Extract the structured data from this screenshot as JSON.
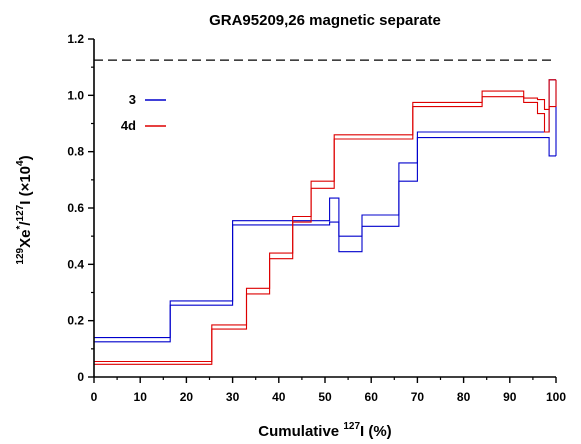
{
  "chart_data": {
    "type": "line",
    "step": true,
    "title": "GRA95209,26 magnetic separate",
    "xlabel": {
      "prefix": "Cumulative ",
      "sup": "127",
      "suffix": "I (%)"
    },
    "ylabel": {
      "sup1": "129",
      "part1": "Xe",
      "sup2": "*",
      "part2": "/",
      "sup3": "127",
      "part3": "I (×10",
      "sup4": "4",
      "part4": ")"
    },
    "xlim": [
      0,
      100
    ],
    "ylim": [
      0,
      1.2
    ],
    "xticks": [
      "0",
      "10",
      "20",
      "30",
      "40",
      "50",
      "60",
      "70",
      "80",
      "90",
      "100"
    ],
    "yticks": [
      "0",
      "0.2",
      "0.4",
      "0.6",
      "0.8",
      "1.0",
      "1.2"
    ],
    "reference_line": {
      "y": 1.125,
      "style": "dashed",
      "color": "#000000"
    },
    "legend_position": "top-left",
    "series": [
      {
        "name": "3",
        "color": "#0000cc",
        "steps": [
          {
            "x0": 0,
            "x1": 16.5,
            "lo": 0.125,
            "hi": 0.14
          },
          {
            "x0": 16.5,
            "x1": 30,
            "lo": 0.255,
            "hi": 0.27
          },
          {
            "x0": 30,
            "x1": 51,
            "lo": 0.54,
            "hi": 0.555
          },
          {
            "x0": 51,
            "x1": 53,
            "lo": 0.55,
            "hi": 0.635
          },
          {
            "x0": 53,
            "x1": 58,
            "lo": 0.445,
            "hi": 0.5
          },
          {
            "x0": 58,
            "x1": 66,
            "lo": 0.535,
            "hi": 0.575
          },
          {
            "x0": 66,
            "x1": 70,
            "lo": 0.695,
            "hi": 0.76
          },
          {
            "x0": 70,
            "x1": 98.5,
            "lo": 0.85,
            "hi": 0.87
          },
          {
            "x0": 98.5,
            "x1": 100,
            "lo": 0.785,
            "hi": 1.055
          }
        ]
      },
      {
        "name": "4d",
        "color": "#dd0000",
        "steps": [
          {
            "x0": 0,
            "x1": 25.5,
            "lo": 0.045,
            "hi": 0.055
          },
          {
            "x0": 25.5,
            "x1": 33,
            "lo": 0.17,
            "hi": 0.185
          },
          {
            "x0": 33,
            "x1": 38,
            "lo": 0.295,
            "hi": 0.315
          },
          {
            "x0": 38,
            "x1": 43,
            "lo": 0.42,
            "hi": 0.44
          },
          {
            "x0": 43,
            "x1": 47,
            "lo": 0.55,
            "hi": 0.57
          },
          {
            "x0": 47,
            "x1": 52,
            "lo": 0.67,
            "hi": 0.695
          },
          {
            "x0": 52,
            "x1": 69,
            "lo": 0.845,
            "hi": 0.86
          },
          {
            "x0": 69,
            "x1": 84,
            "lo": 0.96,
            "hi": 0.975
          },
          {
            "x0": 84,
            "x1": 93,
            "lo": 0.995,
            "hi": 1.015
          },
          {
            "x0": 93,
            "x1": 96,
            "lo": 0.975,
            "hi": 0.99
          },
          {
            "x0": 96,
            "x1": 97.5,
            "lo": 0.935,
            "hi": 0.985
          },
          {
            "x0": 97.5,
            "x1": 98.5,
            "lo": 0.87,
            "hi": 0.95
          },
          {
            "x0": 98.5,
            "x1": 100,
            "lo": 0.96,
            "hi": 1.055
          }
        ]
      }
    ]
  }
}
